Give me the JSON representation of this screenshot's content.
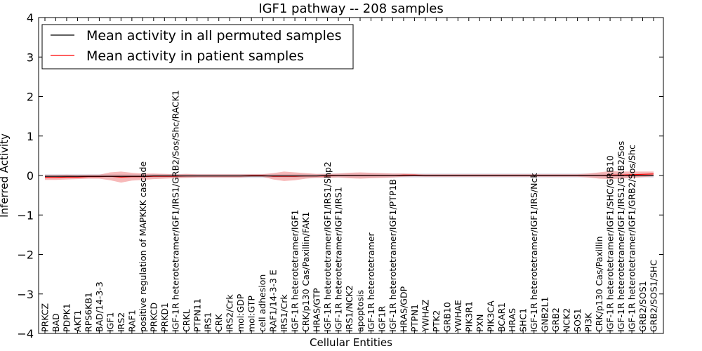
{
  "chart_data": {
    "type": "line",
    "title": "IGF1 pathway -- 208 samples",
    "xlabel": "Cellular Entities",
    "ylabel": "Inferred Activity",
    "ylim": [
      -4,
      4
    ],
    "yticks": [
      "-4",
      "-3",
      "-2",
      "-1",
      "0",
      "1",
      "2",
      "3",
      "4"
    ],
    "legend_position": "top-left",
    "colors": {
      "permuted": "#000000",
      "patient": "#ff0000",
      "patient_band": "#f08080",
      "permuted_band": "#b0b0c8"
    },
    "categories": [
      "PRKCZ",
      "BAD",
      "PDPK1",
      "AKT1",
      "RPS6KB1",
      "BAD/14-3-3",
      "IGF1",
      "IRS2",
      "RAF1",
      "positive regulation of MAPKKK cascade",
      "PRKCD",
      "PRKD1",
      "IGF-1R heterotetramer/IGF1/IRS1/GRB2/Sos/Shc/RACK1",
      "CRKL",
      "PTPN11",
      "IRS1",
      "CRK",
      "IRS2/Crk",
      "mol:GDP",
      "mol:GTP",
      "cell adhesion",
      "RAF1/14-3-3 E",
      "IRS1/Crk",
      "IGF-1R heterotetramer/IGF1",
      "CRK/p130 Cas/Paxillin/FAK1",
      "HRAS/GTP",
      "IGF-1R heterotetramer/IGF1/IRS1/Shp2",
      "IGF-1R heterotetramer/IGF1/IRS1",
      "IRS1/NCK2",
      "apoptosis",
      "IGF-1R heterotetramer",
      "IGF1R",
      "IGF-1R heterotetramer/IGF1/PTP1B",
      "HRAS/GDP",
      "PTPN1",
      "YWHAZ",
      "PTK2",
      "GRB10",
      "YWHAE",
      "PIK3R1",
      "PXN",
      "PIK3CA",
      "BCAR1",
      "HRAS",
      "SHC1",
      "IGF-1R heterotetramer/IGF1/IRS/Nck",
      "GNB2L1",
      "GRB2",
      "NCK2",
      "SOS1",
      "PI3K",
      "CRK/p130 Cas/Paxillin",
      "IGF-1R heterotetramer/IGF1/SHC/GRB10",
      "IGF-1R heterotetramer/IGF1/IRS1/GRB2/Sos",
      "IGF-1R heterotetramer/IGF1/GRB2/Sos/Shc",
      "GRB2/SOS1",
      "GRB2/SOS1/SHC"
    ],
    "series": [
      {
        "name": "Mean activity in all permuted samples",
        "values": [
          -0.02,
          -0.02,
          -0.02,
          -0.02,
          -0.02,
          -0.02,
          -0.02,
          -0.02,
          -0.02,
          -0.02,
          -0.01,
          -0.01,
          -0.01,
          -0.01,
          -0.01,
          -0.01,
          -0.01,
          -0.01,
          -0.01,
          -0.01,
          -0.01,
          -0.01,
          -0.01,
          -0.01,
          -0.01,
          -0.01,
          0,
          0,
          0,
          0,
          0,
          0,
          0,
          0,
          0,
          0,
          0,
          0,
          0,
          0,
          0,
          0,
          0,
          0,
          0,
          0,
          0,
          0,
          0,
          0,
          0,
          0,
          0,
          0,
          0,
          0,
          0
        ],
        "band": 0.05
      },
      {
        "name": "Mean activity in patient samples",
        "values": [
          -0.05,
          -0.05,
          -0.04,
          -0.04,
          -0.03,
          -0.03,
          -0.02,
          -0.04,
          -0.03,
          -0.03,
          -0.02,
          -0.02,
          -0.02,
          -0.01,
          -0.01,
          -0.01,
          -0.01,
          -0.01,
          -0.01,
          0.0,
          0.0,
          -0.02,
          -0.02,
          -0.02,
          -0.01,
          -0.01,
          -0.01,
          0.0,
          0.0,
          0.0,
          0.0,
          0.0,
          0.0,
          0.01,
          0.01,
          0.0,
          0.0,
          0.0,
          0.0,
          0.0,
          0.0,
          0.0,
          0.0,
          0.0,
          0.0,
          0.0,
          0.0,
          0.0,
          0.0,
          0.0,
          0.0,
          0.0,
          0.01,
          0.01,
          0.02,
          0.03,
          0.04
        ],
        "band": [
          0.06,
          0.06,
          0.06,
          0.05,
          0.05,
          0.05,
          0.1,
          0.14,
          0.1,
          0.08,
          0.07,
          0.06,
          0.05,
          0.05,
          0.04,
          0.04,
          0.04,
          0.04,
          0.04,
          0.03,
          0.03,
          0.08,
          0.12,
          0.1,
          0.07,
          0.05,
          0.05,
          0.05,
          0.07,
          0.08,
          0.07,
          0.06,
          0.05,
          0.04,
          0.03,
          0.03,
          0.03,
          0.03,
          0.03,
          0.03,
          0.03,
          0.03,
          0.03,
          0.03,
          0.03,
          0.03,
          0.03,
          0.03,
          0.03,
          0.03,
          0.05,
          0.08,
          0.1,
          0.09,
          0.08,
          0.07,
          0.06
        ]
      }
    ]
  }
}
